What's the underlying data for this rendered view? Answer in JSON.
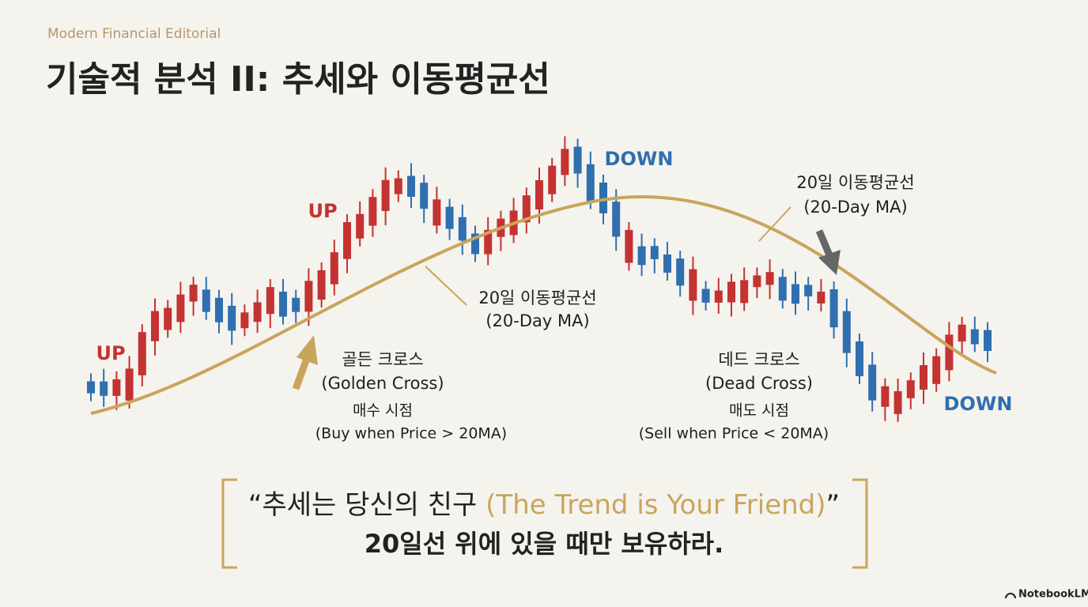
{
  "header": {
    "kicker": "Modern Financial Editorial",
    "title": "기술적 분석 II: 추세와 이동평균선"
  },
  "trend_labels": [
    "UP",
    "UP",
    "DOWN",
    "DOWN"
  ],
  "ma_labels": [
    {
      "korean": "20일 이동평균선",
      "english": "(20-Day MA)"
    },
    {
      "korean": "20일 이동평균선",
      "english": "(20-Day MA)"
    }
  ],
  "signals": [
    {
      "title": "골든 크로스",
      "english": "(Golden Cross)",
      "action": "매수 시점",
      "rule": "(Buy when Price > 20MA)"
    },
    {
      "title": "데드 크로스",
      "english": "(Dead Cross)",
      "action": "매도 시점",
      "rule": "(Sell when Price < 20MA)"
    }
  ],
  "quote": {
    "open": "“",
    "text": "추세는 당신의 친구 ",
    "english": "(The Trend is Your Friend)",
    "close": "”",
    "line2": "20일선 위에 있을 때만 보유하라."
  },
  "footer": "NotebookLM"
}
